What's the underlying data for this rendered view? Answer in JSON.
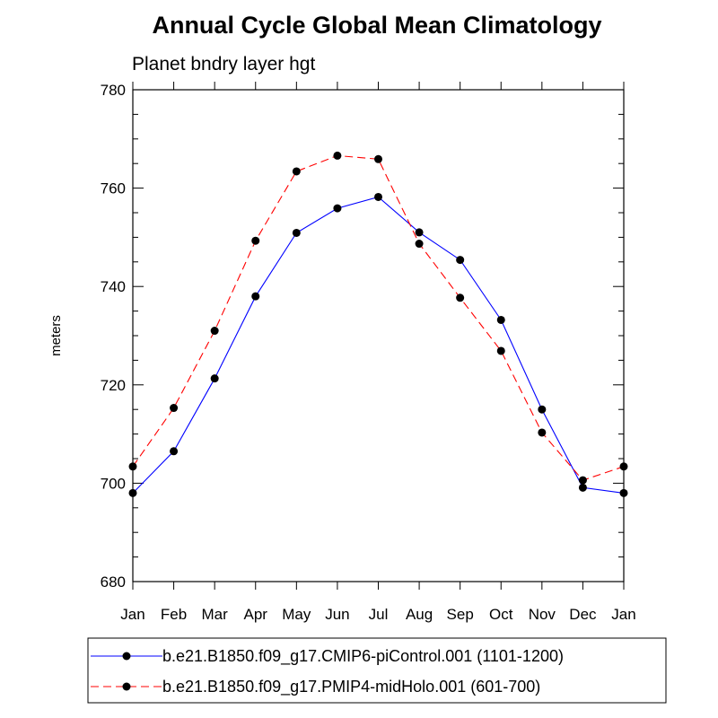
{
  "chart_data": {
    "type": "line",
    "title": "Annual Cycle Global Mean Climatology",
    "subtitle": "Planet bndry layer hgt",
    "ylabel": "meters",
    "xlabel": "",
    "categories": [
      "Jan",
      "Feb",
      "Mar",
      "Apr",
      "May",
      "Jun",
      "Jul",
      "Aug",
      "Sep",
      "Oct",
      "Nov",
      "Dec",
      "Jan"
    ],
    "ylim": [
      680,
      780
    ],
    "yticks": [
      "680",
      "700",
      "720",
      "740",
      "760",
      "780"
    ],
    "grid": false,
    "legend_placement": "bottom",
    "series": [
      {
        "name": "b.e21.B1850.f09_g17.CMIP6-piControl.001 (1101-1200)",
        "color": "#0000ff",
        "line_style": "solid",
        "marker": "filled-circle",
        "values": [
          698.0,
          706.5,
          721.3,
          738.0,
          750.9,
          755.9,
          758.2,
          751.0,
          745.4,
          733.2,
          715.0,
          699.1,
          698.0
        ]
      },
      {
        "name": "b.e21.B1850.f09_g17.PMIP4-midHolo.001 (601-700)",
        "color": "#ff0000",
        "line_style": "dashed",
        "marker": "filled-circle",
        "values": [
          703.4,
          715.3,
          731.0,
          749.3,
          763.4,
          766.6,
          765.9,
          748.7,
          737.7,
          726.9,
          710.3,
          700.6,
          703.4
        ]
      }
    ]
  }
}
